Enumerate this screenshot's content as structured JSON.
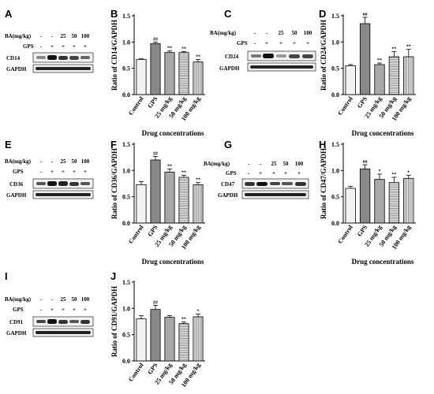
{
  "figure": {
    "blot_panels": [
      {
        "letter": "A",
        "dose_label": "BA(mg/kg)",
        "dose_marks": [
          "-",
          "-",
          "25",
          "50",
          "100"
        ],
        "gps_label": "GPS",
        "gps_marks": [
          "-",
          "+",
          "+",
          "+",
          "+"
        ],
        "proteins": [
          "CD14",
          "GAPDH"
        ]
      },
      {
        "letter": "C",
        "dose_label": "BA(mg/kg)",
        "dose_marks": [
          "-",
          "-",
          "25",
          "50",
          "100"
        ],
        "gps_label": "GPS",
        "gps_marks": [
          "-",
          "+",
          "+",
          "+",
          "+"
        ],
        "proteins": [
          "CD24",
          "GAPDH"
        ]
      },
      {
        "letter": "E",
        "dose_label": "BA(mg/kg)",
        "dose_marks": [
          "-",
          "-",
          "25",
          "50",
          "100"
        ],
        "gps_label": "GPS",
        "gps_marks": [
          "-",
          "+",
          "+",
          "+",
          "+"
        ],
        "proteins": [
          "CD36",
          "GAPDH"
        ]
      },
      {
        "letter": "G",
        "dose_label": "BA(mg/kg)",
        "dose_marks": [
          "-",
          "-",
          "25",
          "50",
          "100"
        ],
        "gps_label": "GPS",
        "gps_marks": [
          "-",
          "+",
          "+",
          "+",
          "+"
        ],
        "proteins": [
          "CD47",
          "GAPDH"
        ]
      },
      {
        "letter": "I",
        "dose_label": "BA(mg/kg)",
        "dose_marks": [
          "-",
          "-",
          "25",
          "50",
          "100"
        ],
        "gps_label": "GPS",
        "gps_marks": [
          "-",
          "+",
          "+",
          "+",
          "+"
        ],
        "proteins": [
          "CD91",
          "GAPDH"
        ]
      }
    ]
  },
  "chart_data": [
    {
      "letter": "B",
      "type": "bar",
      "ylabel": "Ratio of CD14/GAPDH",
      "xlabel": "Drug concentrations",
      "categories": [
        "Control",
        "GPS",
        "25 mg/kg",
        "50 mg/kg",
        "100 mg/kg"
      ],
      "values": [
        0.67,
        0.97,
        0.8,
        0.8,
        0.62
      ],
      "errors": [
        0.01,
        0.03,
        0.03,
        0.02,
        0.05
      ],
      "marks": [
        "",
        "##",
        "**",
        "**",
        "**"
      ],
      "ylim": [
        0.0,
        1.5
      ],
      "yticks": [
        "0.0",
        "0.5",
        "1.0",
        "1.5"
      ]
    },
    {
      "letter": "D",
      "type": "bar",
      "ylabel": "Ratio of CD24/GAPDH",
      "xlabel": "Drug concentrations",
      "categories": [
        "Control",
        "GPS",
        "25 mg/kg",
        "50 mg/kg",
        "100 mg/kg"
      ],
      "values": [
        0.55,
        1.35,
        0.57,
        0.72,
        0.72
      ],
      "errors": [
        0.02,
        0.12,
        0.03,
        0.1,
        0.14
      ],
      "marks": [
        "",
        "##",
        "**",
        "**",
        "**"
      ],
      "ylim": [
        0.0,
        1.5
      ],
      "yticks": [
        "0.0",
        "0.5",
        "1.0",
        "1.5"
      ]
    },
    {
      "letter": "F",
      "type": "bar",
      "ylabel": "Ratio of CD36/GAPDH",
      "xlabel": "Drug concentrations",
      "categories": [
        "Control",
        "GPS",
        "25 mg/kg",
        "50 mg/kg",
        "100 mg/kg"
      ],
      "values": [
        0.73,
        1.2,
        0.97,
        0.87,
        0.73
      ],
      "errors": [
        0.06,
        0.07,
        0.06,
        0.04,
        0.04
      ],
      "marks": [
        "",
        "##",
        "**",
        "**",
        "**"
      ],
      "ylim": [
        0.0,
        1.5
      ],
      "yticks": [
        "0.0",
        "0.5",
        "1.0",
        "1.5"
      ]
    },
    {
      "letter": "H",
      "type": "bar",
      "ylabel": "Ratio of CD47/GAPDH",
      "xlabel": "Drug concentrations",
      "categories": [
        "Control",
        "GPS",
        "25 mg/kg",
        "50 mg/kg",
        "100 mg/kg"
      ],
      "values": [
        0.66,
        1.03,
        0.83,
        0.77,
        0.85
      ],
      "errors": [
        0.04,
        0.08,
        0.1,
        0.1,
        0.06
      ],
      "marks": [
        "",
        "##",
        "*",
        "**",
        "*"
      ],
      "ylim": [
        0.0,
        1.5
      ],
      "yticks": [
        "0.0",
        "0.5",
        "1.0",
        "1.5"
      ]
    },
    {
      "letter": "J",
      "type": "bar",
      "ylabel": "Ratio of CD91/GAPDH",
      "xlabel": "Drug concentrations",
      "categories": [
        "Control",
        "GPS",
        "25 mg/kg",
        "50 mg/kg",
        "100 mg/kg"
      ],
      "values": [
        0.8,
        0.98,
        0.83,
        0.71,
        0.84
      ],
      "errors": [
        0.06,
        0.08,
        0.03,
        0.03,
        0.05
      ],
      "marks": [
        "",
        "##",
        "",
        "**",
        "*"
      ],
      "ylim": [
        0.0,
        1.5
      ],
      "yticks": [
        "0.0",
        "0.5",
        "1.0",
        "1.5"
      ]
    }
  ]
}
